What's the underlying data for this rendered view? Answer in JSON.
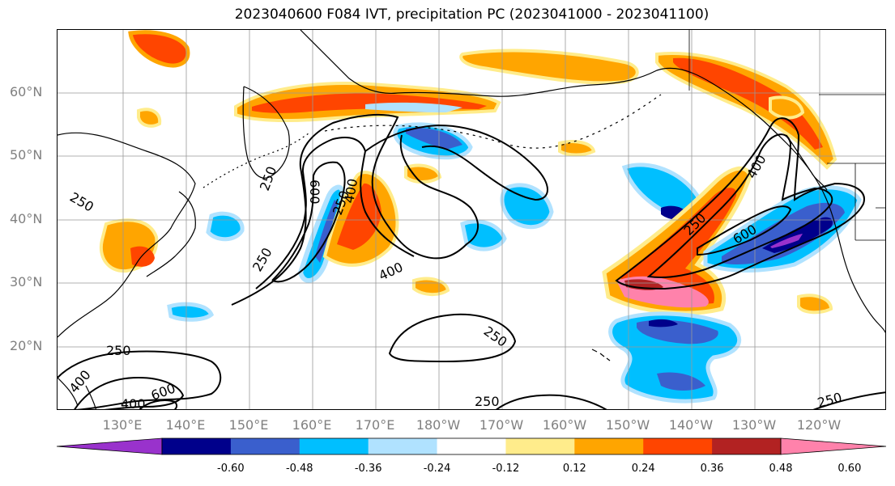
{
  "title": "2023040600 F084 IVT, precipitation PC (2023041000 - 2023041100)",
  "lat_labels": [
    "60°N",
    "50°N",
    "40°N",
    "30°N",
    "20°N"
  ],
  "lon_labels": [
    "130°E",
    "140°E",
    "150°E",
    "160°E",
    "170°E",
    "180°W",
    "170°W",
    "160°W",
    "150°W",
    "140°W",
    "130°W",
    "120°W"
  ],
  "contour_labels": [
    "250",
    "250",
    "600",
    "400",
    "400",
    "250",
    "250",
    "400",
    "250",
    "600",
    "250",
    "250",
    "250",
    "400",
    "400",
    "600",
    "250"
  ],
  "colorbar": {
    "ticks": [
      "-0.60",
      "-0.48",
      "-0.36",
      "-0.24",
      "-0.12",
      "0.12",
      "0.24",
      "0.36",
      "0.48",
      "0.60"
    ],
    "colors": [
      "#9932CC",
      "#00008B",
      "#3A5FCD",
      "#00BFFF",
      "#B0E2FF",
      "#FFFFFF",
      "#FFEC8B",
      "#FFA500",
      "#FF4500",
      "#B22222",
      "#FF82AB"
    ]
  }
}
